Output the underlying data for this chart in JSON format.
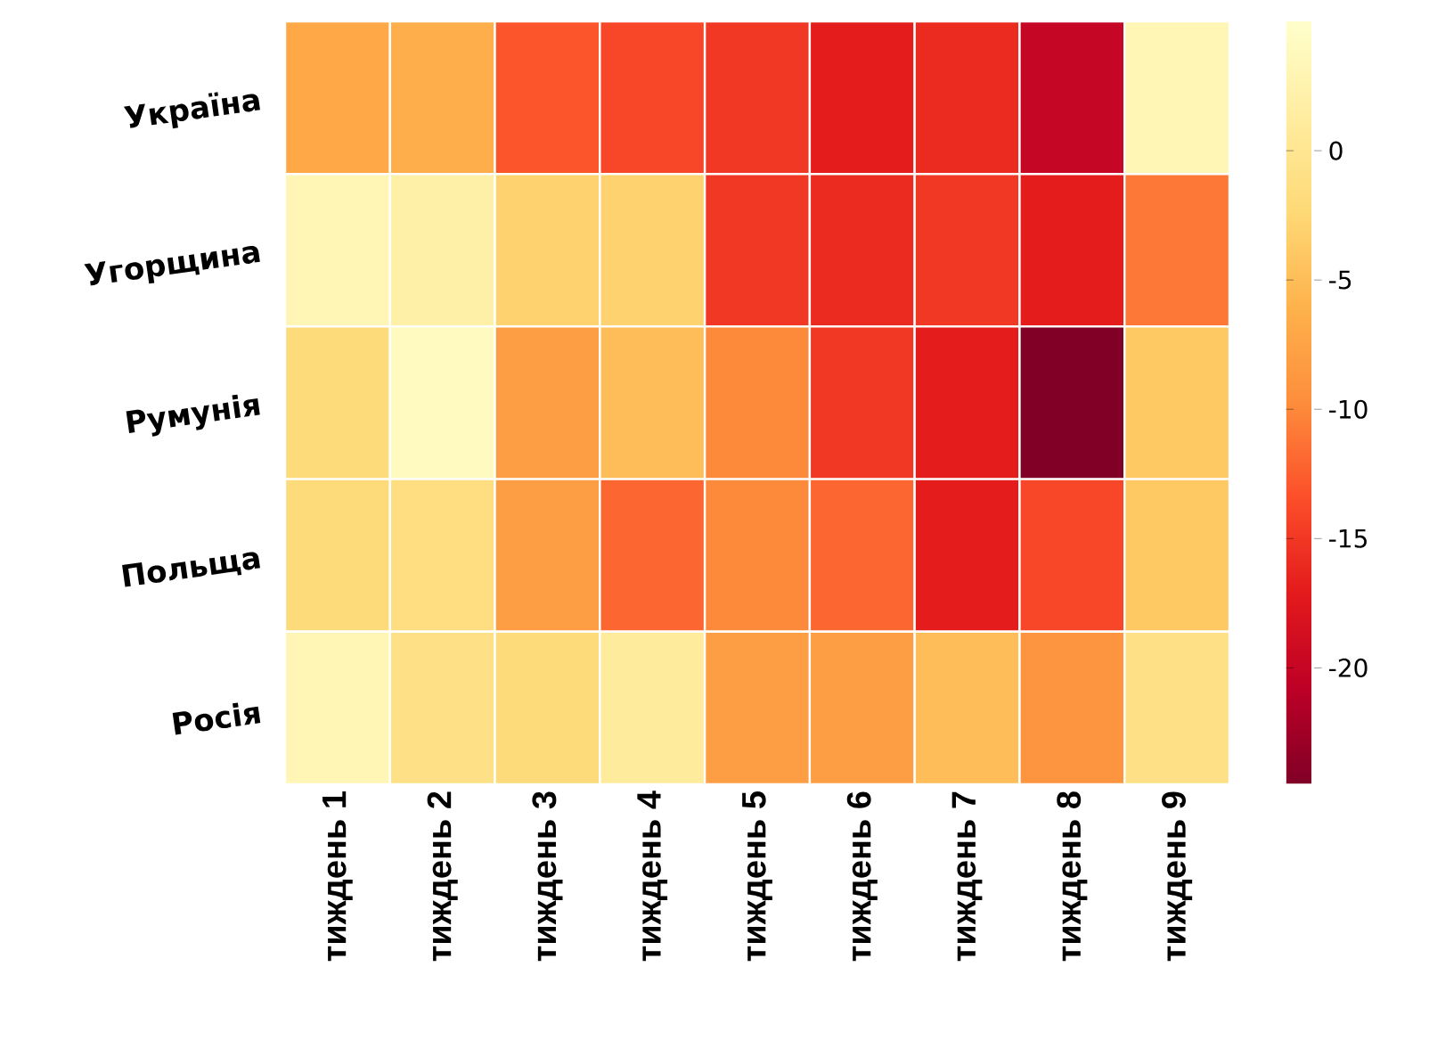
{
  "chart_data": {
    "type": "heatmap",
    "categories": [
      "тиждень 1",
      "тиждень 2",
      "тиждень 3",
      "тиждень 4",
      "тиждень 5",
      "тиждень 6",
      "тиждень 7",
      "тиждень 8",
      "тиждень 9"
    ],
    "y_categories": [
      "Україна",
      "Угорщина",
      "Румунія",
      "Польща",
      "Росія"
    ],
    "cells": [
      [
        -7,
        -6.5,
        -13,
        -14,
        -15,
        -17,
        -16,
        -20,
        3
      ],
      [
        3,
        2,
        -3,
        -3,
        -15,
        -16,
        -15,
        -17,
        -11
      ],
      [
        -2,
        4,
        -8,
        -5,
        -10,
        -15,
        -17,
        -24.5,
        -4
      ],
      [
        -2,
        -1.5,
        -8,
        -12,
        -10,
        -12,
        -17,
        -14,
        -4
      ],
      [
        3,
        -1,
        -2,
        1,
        -8,
        -8,
        -5,
        -9,
        -1
      ]
    ],
    "clim": [
      -24.5,
      5
    ],
    "cticks": [
      0,
      -5,
      -10,
      -15,
      -20
    ]
  }
}
